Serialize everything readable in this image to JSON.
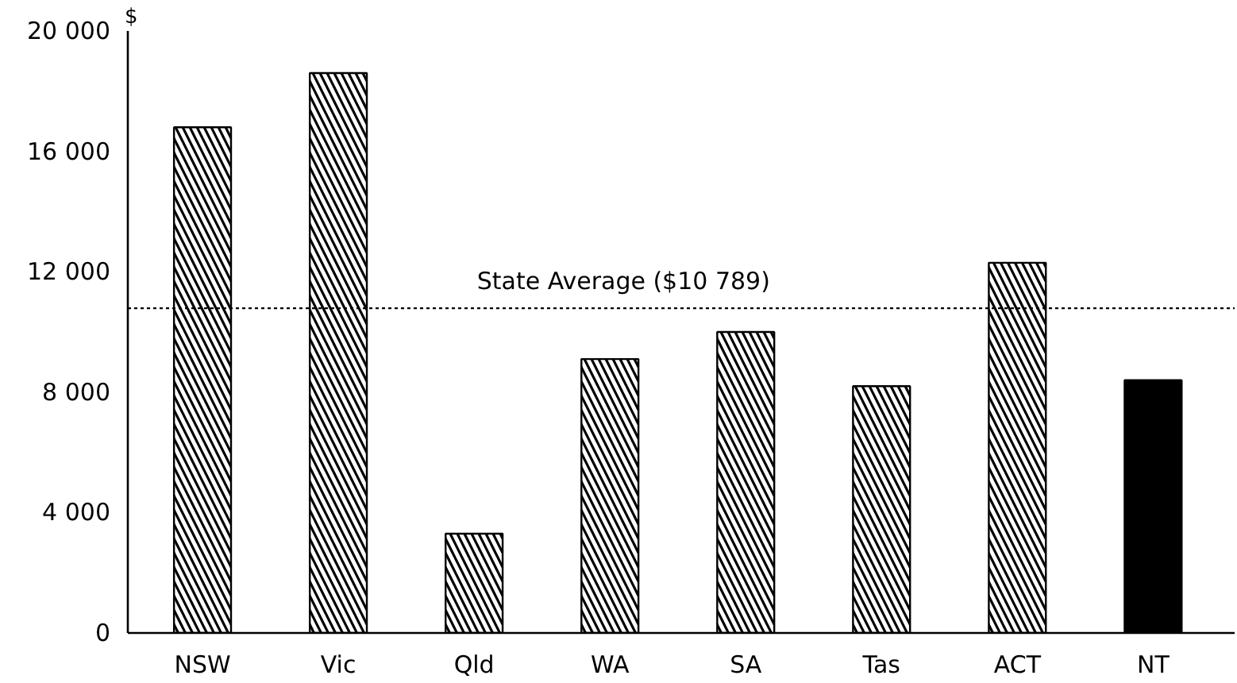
{
  "chart_data": {
    "type": "bar",
    "ylabel": "$",
    "categories": [
      "NSW",
      "Vic",
      "Qld",
      "WA",
      "SA",
      "Tas",
      "ACT",
      "NT"
    ],
    "values": [
      16800,
      18600,
      3300,
      9100,
      10000,
      8200,
      12300,
      8400
    ],
    "colors": [
      "#ffffff",
      "#ffffff",
      "#ffffff",
      "#ffffff",
      "#ffffff",
      "#ffffff",
      "#ffffff",
      "#000000"
    ],
    "ylim": [
      0,
      20000
    ],
    "yticks": [
      0,
      {
        "value": 4000,
        "label": "4 000"
      },
      {
        "value": 8000,
        "label": "8 000"
      },
      {
        "value": 12000,
        "label": "12 000"
      },
      {
        "value": 16000,
        "label": "16 000"
      },
      {
        "value": 20000,
        "label": "20 000"
      }
    ],
    "ref_lines": [
      {
        "axis": "y",
        "value": 10789,
        "label": "State Average ($10 789)",
        "color": "#000000",
        "line_style": "dotted"
      }
    ],
    "grid": false
  }
}
